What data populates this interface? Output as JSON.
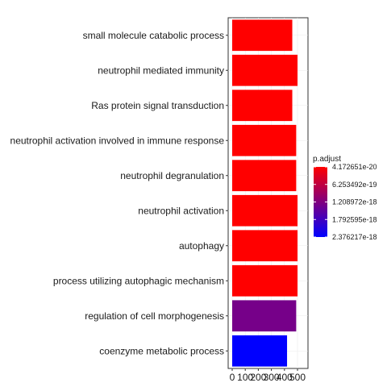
{
  "chart_data": {
    "type": "bar",
    "orientation": "horizontal",
    "categories": [
      "small molecule catabolic process",
      "neutrophil mediated immunity",
      "Ras protein signal transduction",
      "neutrophil activation involved in immune response",
      "neutrophil degranulation",
      "neutrophil activation",
      "autophagy",
      "process utilizing autophagic mechanism",
      "regulation of cell morphogenesis",
      "coenzyme metabolic process"
    ],
    "values": [
      460,
      500,
      460,
      490,
      490,
      500,
      500,
      500,
      490,
      420
    ],
    "p_adjust": [
      4.3e-20,
      4.2e-20,
      4.3e-20,
      4.5e-20,
      4.6e-20,
      4.3e-20,
      4.3e-20,
      4.3e-20,
      1.3e-18,
      2.376217e-18
    ],
    "xlim": [
      0,
      530
    ],
    "x_ticks": [
      0,
      100,
      200,
      300,
      400,
      500
    ],
    "grid": true,
    "legend": {
      "title": "p.adjust",
      "placement": "right",
      "labels": [
        "4.172651e-20",
        "6.253492e-19",
        "1.208972e-18",
        "1.792595e-18",
        "2.376217e-18"
      ],
      "values": [
        4.172651e-20,
        6.253492e-19,
        1.208972e-18,
        1.792595e-18,
        2.376217e-18
      ],
      "color_low": "#ff0000",
      "color_high": "#0000ff"
    },
    "title": "",
    "xlabel": "",
    "ylabel": ""
  }
}
